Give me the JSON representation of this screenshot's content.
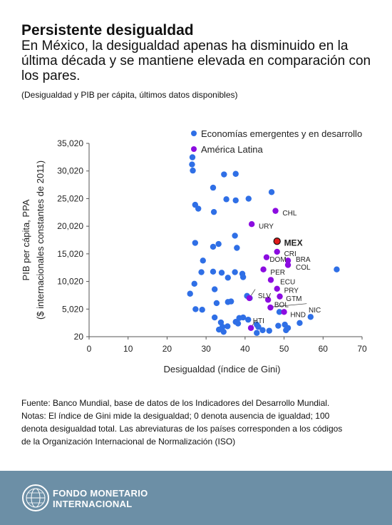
{
  "header": {
    "title": "Persistente desigualdad",
    "subtitle": "En México, la desigualdad apenas ha disminuido en la última década y se mantiene elevada en comparación con los pares.",
    "note": "(Desigualdad y PIB per cápita, últimos datos disponibles)"
  },
  "chart_data": {
    "type": "scatter",
    "xlabel": "Desigualdad (índice de Gini)",
    "ylabel": [
      "PIB per cápita, PPA",
      "($ internacionales constantes de 2011)"
    ],
    "xlim": [
      0,
      70
    ],
    "ylim": [
      20,
      35020
    ],
    "x_ticks": [
      "0",
      "10",
      "20",
      "30",
      "40",
      "50",
      "60",
      "70"
    ],
    "y_ticks": [
      "20",
      "5,020",
      "10,020",
      "15,020",
      "20,020",
      "25,020",
      "30,020",
      "35,020"
    ],
    "legend_position": "top-right",
    "colors": {
      "emerging": "#2f6fe6",
      "latam": "#8b0ce0",
      "mexico": "#e11b1b"
    },
    "series": [
      {
        "name": "Economías emergentes y en desarrollo",
        "points": [
          [
            26.5,
            32500
          ],
          [
            26.4,
            31200
          ],
          [
            26.6,
            30100
          ],
          [
            27.2,
            23900
          ],
          [
            28.0,
            23200
          ],
          [
            27.2,
            17000
          ],
          [
            25.9,
            7800
          ],
          [
            27.0,
            9600
          ],
          [
            27.3,
            5000
          ],
          [
            31.8,
            27000
          ],
          [
            32.0,
            22600
          ],
          [
            33.2,
            16800
          ],
          [
            34.6,
            29400
          ],
          [
            35.2,
            24900
          ],
          [
            37.6,
            29500
          ],
          [
            37.6,
            24700
          ],
          [
            37.4,
            18300
          ],
          [
            37.9,
            16100
          ],
          [
            40.9,
            25000
          ],
          [
            46.8,
            26200
          ],
          [
            31.8,
            16300
          ],
          [
            29.2,
            13800
          ],
          [
            28.8,
            11700
          ],
          [
            31.8,
            11800
          ],
          [
            34.0,
            11600
          ],
          [
            37.4,
            11700
          ],
          [
            35.6,
            10700
          ],
          [
            39.3,
            11400
          ],
          [
            39.5,
            10800
          ],
          [
            32.2,
            8600
          ],
          [
            32.7,
            6100
          ],
          [
            35.6,
            6300
          ],
          [
            36.4,
            6400
          ],
          [
            40.5,
            7400
          ],
          [
            41.2,
            7000
          ],
          [
            32.2,
            3500
          ],
          [
            33.8,
            2600
          ],
          [
            34.2,
            1800
          ],
          [
            34.5,
            900
          ],
          [
            35.5,
            1900
          ],
          [
            37.6,
            2700
          ],
          [
            38.2,
            2400
          ],
          [
            39.5,
            3500
          ],
          [
            40.8,
            3100
          ],
          [
            43.0,
            2200
          ],
          [
            43.4,
            1800
          ],
          [
            43.0,
            700
          ],
          [
            44.5,
            1200
          ],
          [
            46.2,
            1100
          ],
          [
            48.5,
            2000
          ],
          [
            48.8,
            4500
          ],
          [
            50.2,
            2200
          ],
          [
            50.5,
            1200
          ],
          [
            51.0,
            1600
          ],
          [
            54.0,
            2500
          ],
          [
            56.8,
            3600
          ],
          [
            63.5,
            12200
          ],
          [
            29.0,
            4900
          ],
          [
            38.5,
            3400
          ],
          [
            33.3,
            1300
          ]
        ]
      },
      {
        "name": "América Latina",
        "points": [
          [
            47.8,
            22800
          ],
          [
            41.7,
            20400
          ],
          [
            48.2,
            15400
          ],
          [
            45.5,
            14400
          ],
          [
            51.0,
            13800
          ],
          [
            51.0,
            13000
          ],
          [
            44.7,
            12200
          ],
          [
            46.6,
            10300
          ],
          [
            48.2,
            8700
          ],
          [
            48.9,
            7300
          ],
          [
            41.1,
            7000
          ],
          [
            45.9,
            6700
          ],
          [
            46.5,
            5300
          ],
          [
            50.0,
            4500
          ],
          [
            41.5,
            1600
          ]
        ]
      },
      {
        "name": "",
        "points": [
          [
            48.2,
            17300
          ]
        ]
      }
    ],
    "annotations": [
      {
        "text": "CHL",
        "x": 49.6,
        "y": 22500
      },
      {
        "text": "URY",
        "x": 43.5,
        "y": 20100
      },
      {
        "text": "MEX",
        "x": 50.0,
        "y": 17000
      },
      {
        "text": "CRI",
        "x": 50.0,
        "y": 15100
      },
      {
        "text": "DOM",
        "x": 46.3,
        "y": 14100
      },
      {
        "text": "BRA",
        "x": 53.0,
        "y": 14100
      },
      {
        "text": "COL",
        "x": 53.0,
        "y": 12700
      },
      {
        "text": "PER",
        "x": 46.5,
        "y": 11800
      },
      {
        "text": "ECU",
        "x": 49.0,
        "y": 10000
      },
      {
        "text": "PRY",
        "x": 50.0,
        "y": 8500
      },
      {
        "text": "SLV",
        "x": 43.3,
        "y": 7500
      },
      {
        "text": "GTM",
        "x": 50.5,
        "y": 7000
      },
      {
        "text": "BOL",
        "x": 47.5,
        "y": 5900
      },
      {
        "text": "NIC",
        "x": 56.3,
        "y": 4900
      },
      {
        "text": "HND",
        "x": 51.6,
        "y": 4100
      },
      {
        "text": "HTI",
        "x": 42.0,
        "y": 3000
      }
    ]
  },
  "footer": {
    "lines": [
      "Fuente: Banco Mundial, base de datos de los Indicadores del Desarrollo Mundial.",
      "Notas: El índice de Gini mide la desigualdad; 0 denota ausencia de igualdad; 100",
      "denota desigualdad total. Las abreviaturas de los países corresponden a los códigos",
      "de la Organización Internacional de Normalización (ISO)"
    ],
    "org_line1": "FONDO MONETARIO",
    "org_line2": "INTERNACIONAL"
  }
}
